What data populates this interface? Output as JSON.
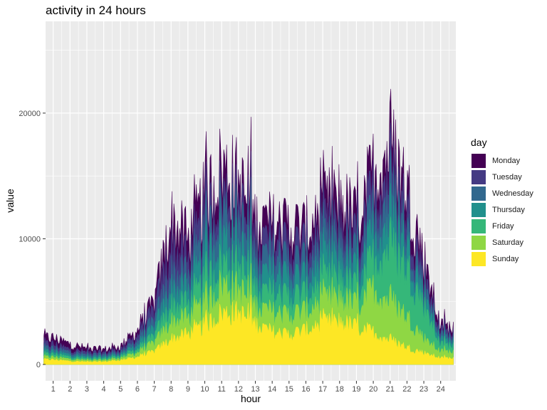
{
  "chart_data": {
    "type": "area",
    "title": "activity in 24 hours",
    "xlabel": "hour",
    "ylabel": "value",
    "x_ticks": [
      "1",
      "2",
      "3",
      "4",
      "5",
      "6",
      "7",
      "8",
      "9",
      "10",
      "11",
      "12",
      "13",
      "14",
      "15",
      "16",
      "17",
      "18",
      "19",
      "20",
      "21",
      "22",
      "23",
      "24"
    ],
    "y_ticks": [
      "0",
      "10000",
      "20000"
    ],
    "y_tick_values": [
      0,
      10000,
      20000
    ],
    "xlim": [
      0.55,
      24.9
    ],
    "ylim": [
      -1300,
      27300
    ],
    "x_range": [
      0.45,
      24.75
    ],
    "legend_title": "day",
    "legend_position": "right",
    "grid": true,
    "stacking": "overlapping, Monday drawn first (back), Sunday last (front)",
    "series": [
      {
        "name": "Monday",
        "color": "#440154",
        "profile": [
          2500,
          1900,
          1500,
          1400,
          1700,
          3200,
          5800,
          13500,
          11500,
          15500,
          18500,
          17000,
          13500,
          13000,
          13000,
          12500,
          14500,
          15500,
          13500,
          18000,
          20500,
          16500,
          10000,
          3500
        ]
      },
      {
        "name": "Tuesday",
        "color": "#443A83",
        "profile": [
          1900,
          1400,
          1150,
          1100,
          1400,
          2700,
          5000,
          11000,
          9500,
          13500,
          16000,
          15000,
          11500,
          11500,
          11000,
          11000,
          12500,
          13000,
          11500,
          16000,
          18000,
          14500,
          8500,
          3000
        ]
      },
      {
        "name": "Wednesday",
        "color": "#31688E",
        "profile": [
          1500,
          1150,
          900,
          900,
          1150,
          2200,
          4000,
          8500,
          8000,
          11500,
          14500,
          13500,
          10000,
          10000,
          9500,
          9500,
          11000,
          11500,
          10000,
          14000,
          16000,
          12500,
          7500,
          2600
        ]
      },
      {
        "name": "Thursday",
        "color": "#21908C",
        "profile": [
          1200,
          900,
          700,
          700,
          950,
          1800,
          3300,
          7000,
          6800,
          9500,
          12000,
          11000,
          8500,
          8300,
          8000,
          8000,
          9300,
          9800,
          8500,
          12000,
          13500,
          11000,
          6500,
          2200
        ]
      },
      {
        "name": "Friday",
        "color": "#35B779",
        "profile": [
          950,
          700,
          550,
          550,
          800,
          1400,
          2600,
          5500,
          5500,
          7500,
          9500,
          9000,
          7000,
          6500,
          6300,
          6500,
          7500,
          8000,
          7000,
          9800,
          11000,
          9000,
          5500,
          1800
        ]
      },
      {
        "name": "Saturday",
        "color": "#8FD744",
        "profile": [
          700,
          500,
          400,
          400,
          600,
          1100,
          2000,
          4000,
          4300,
          5500,
          7500,
          7000,
          5500,
          4800,
          4600,
          5000,
          5800,
          6200,
          5500,
          7000,
          6000,
          4500,
          2500,
          1200
        ]
      },
      {
        "name": "Sunday",
        "color": "#FDE725",
        "profile": [
          450,
          300,
          250,
          250,
          400,
          700,
          1200,
          2400,
          2800,
          3600,
          4800,
          4800,
          3800,
          3000,
          2800,
          3200,
          3800,
          4000,
          3500,
          3000,
          2300,
          1600,
          1100,
          600
        ]
      }
    ]
  }
}
